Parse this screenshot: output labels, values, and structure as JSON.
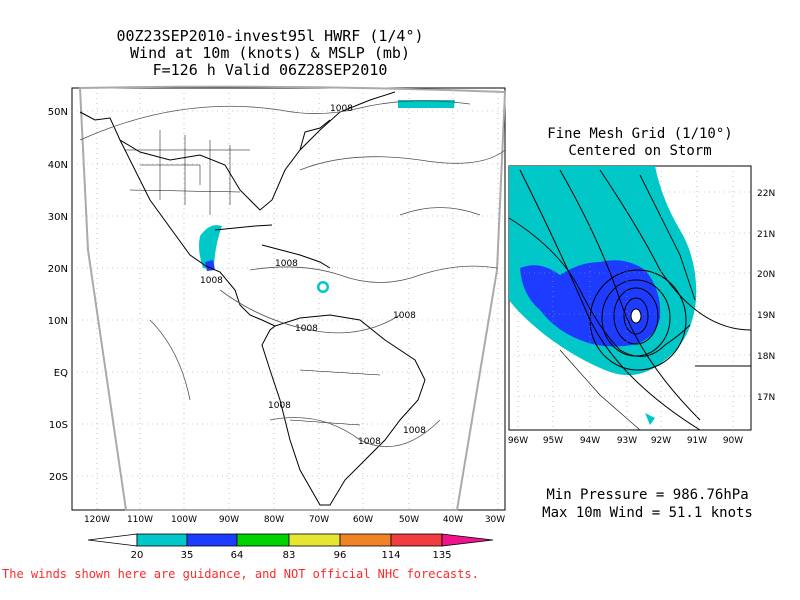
{
  "main_title": {
    "line1": "00Z23SEP2010-invest95l HWRF (1/4°)",
    "line2": "Wind at 10m (knots) & MSLP (mb)",
    "line3": "F=126 h Valid 06Z28SEP2010"
  },
  "inset_title": {
    "line1": "Fine Mesh Grid (1/10°)",
    "line2": "Centered on Storm"
  },
  "main_map": {
    "lat_labels": [
      "50N",
      "40N",
      "30N",
      "20N",
      "10N",
      "EQ",
      "10S",
      "20S"
    ],
    "lon_labels": [
      "120W",
      "110W",
      "100W",
      "90W",
      "80W",
      "70W",
      "60W",
      "50W",
      "40W",
      "30W"
    ],
    "isobar_labels": [
      "1008",
      "1008",
      "1008",
      "1008",
      "1008",
      "1008",
      "1008",
      "1008"
    ]
  },
  "inset_map": {
    "lat_labels": [
      "22N",
      "21N",
      "20N",
      "19N",
      "18N",
      "17N"
    ],
    "lon_labels": [
      "96W",
      "95W",
      "94W",
      "93W",
      "92W",
      "91W",
      "90W"
    ]
  },
  "stats": {
    "min_pressure": "Min Pressure = 986.76hPa",
    "max_wind": "Max 10m Wind = 51.1 knots"
  },
  "colorbar": {
    "labels": [
      "20",
      "35",
      "64",
      "83",
      "96",
      "114",
      "135"
    ],
    "colors": [
      "#ffffff",
      "#00c8c8",
      "#1e3cff",
      "#00d200",
      "#e6e632",
      "#f08228",
      "#f03c3c",
      "#f0148c"
    ]
  },
  "disclaimer": "The winds shown here are guidance, and NOT official NHC forecasts."
}
